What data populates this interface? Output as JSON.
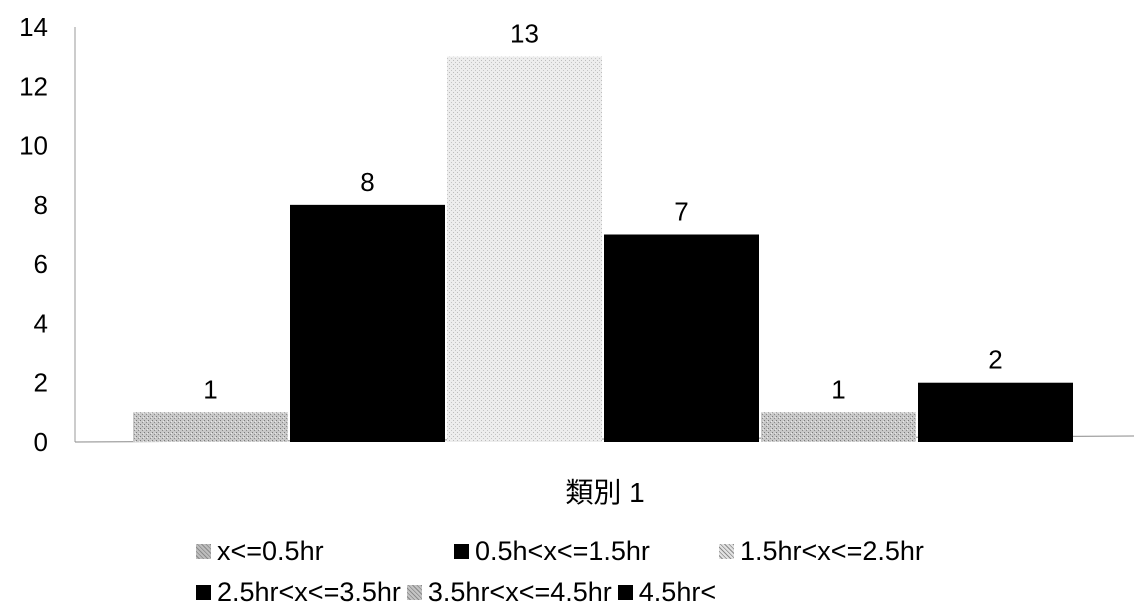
{
  "chart_data": {
    "type": "bar",
    "categories": [
      "類別 1"
    ],
    "series": [
      {
        "name": "x<=0.5hr",
        "values": [
          1
        ],
        "color": "#bdbdbd",
        "pattern": "speckle-medium"
      },
      {
        "name": "0.5h<x<=1.5hr",
        "values": [
          8
        ],
        "color": "#000000",
        "pattern": "solid"
      },
      {
        "name": "1.5hr<x<=2.5hr",
        "values": [
          13
        ],
        "color": "#e2e2e2",
        "pattern": "speckle-light"
      },
      {
        "name": "2.5hr<x<=3.5hr",
        "values": [
          7
        ],
        "color": "#000000",
        "pattern": "solid"
      },
      {
        "name": "3.5hr<x<=4.5hr",
        "values": [
          1
        ],
        "color": "#c4c4c4",
        "pattern": "speckle-medium"
      },
      {
        "name": "4.5hr<",
        "values": [
          2
        ],
        "color": "#000000",
        "pattern": "solid"
      }
    ],
    "data_labels": [
      "1",
      "8",
      "13",
      "7",
      "1",
      "2"
    ],
    "yticks": [
      "0",
      "2",
      "4",
      "6",
      "8",
      "10",
      "12",
      "14"
    ],
    "ylim": [
      0,
      14
    ],
    "title": "",
    "xlabel": "",
    "ylabel": "",
    "grid": false,
    "legend_position": "bottom"
  }
}
